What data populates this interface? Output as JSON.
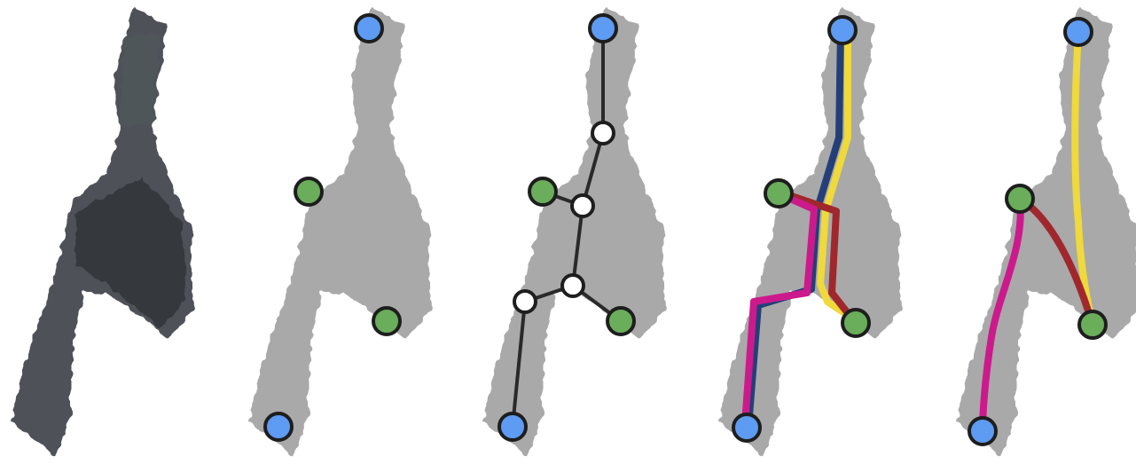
{
  "colors": {
    "node_blue": "#5e9bf2",
    "node_green": "#6aad5a",
    "node_white": "#ffffff",
    "node_outline": "#1e1e1e",
    "skeleton": "#2a2a2a",
    "path_navy": "#243f78",
    "path_yellow": "#f0d93a",
    "path_magenta": "#cc1a8c",
    "path_darkred": "#a0282c",
    "shape_dark": "#3a3f46",
    "shape_gray": "#9a9a9a"
  },
  "panels": [
    {
      "name": "input-shape-panel",
      "style": "dark"
    },
    {
      "name": "endpoints-panel",
      "style": "gray"
    },
    {
      "name": "skeleton-graph-panel",
      "style": "gray"
    },
    {
      "name": "skeleton-paths-panel",
      "style": "gray"
    },
    {
      "name": "smoothed-paths-panel",
      "style": "gray"
    }
  ]
}
